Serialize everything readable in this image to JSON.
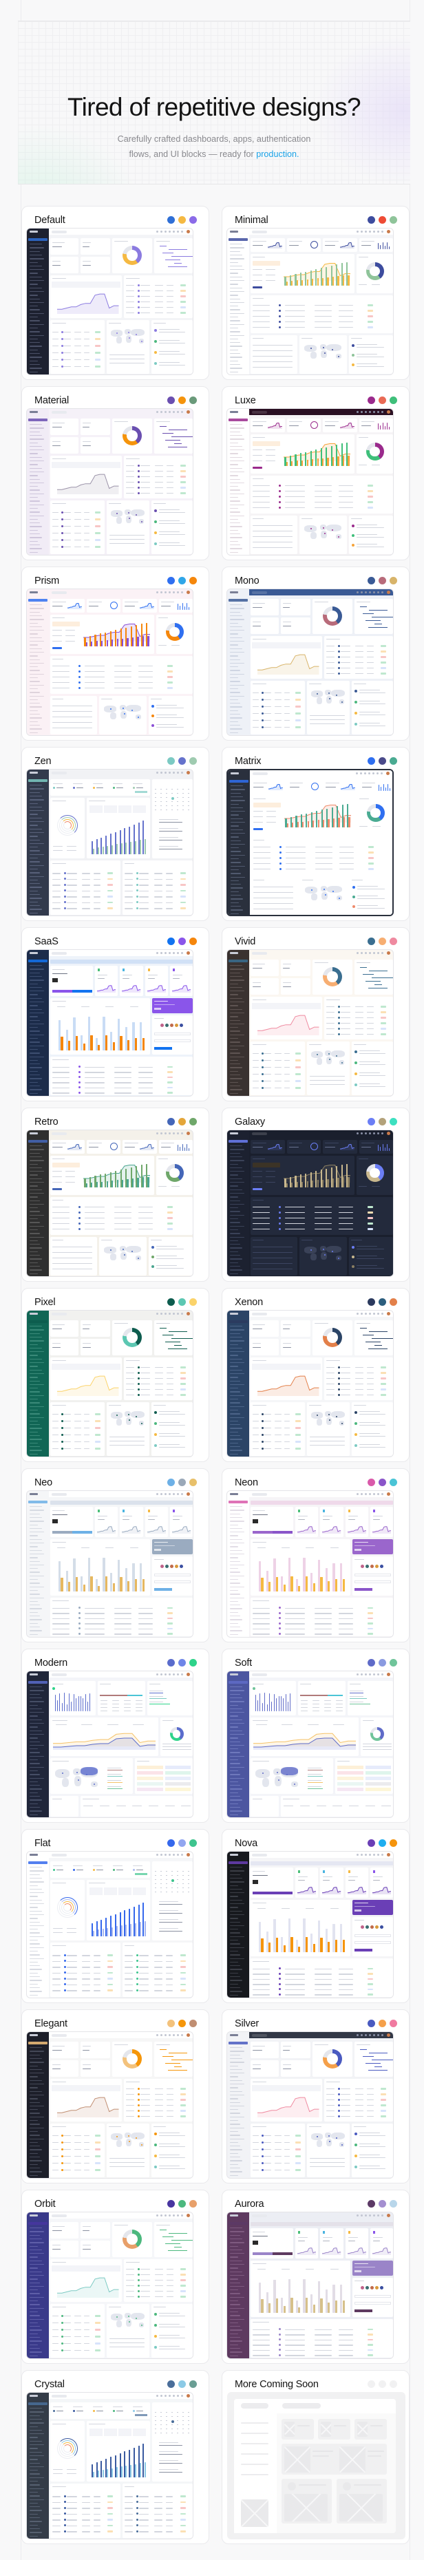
{
  "hero": {
    "title": "Tired of repetitive designs?",
    "subtitle_line1": "Carefully crafted dashboards, apps, authentication",
    "subtitle_line2_prefix": "flows, and UI blocks — ready for ",
    "subtitle_accent": "production.",
    "accent_color": "#1aa3e8"
  },
  "themes": [
    {
      "name": "Default",
      "dots": [
        "#2f6fd6",
        "#f5b942",
        "#8b6be8"
      ],
      "layout": "ecommerce",
      "sidebar": "#1d2130",
      "sidebar_text": "#4a5066",
      "bg": "#f3f4f7",
      "topbar": "#ffffff",
      "primary": "#8b7be0",
      "secondary": "#f5b942",
      "chart": "line"
    },
    {
      "name": "Minimal",
      "dots": [
        "#3d4c9e",
        "#ee4b35",
        "#8fc49a"
      ],
      "layout": "analytics",
      "sidebar": "#ffffff",
      "sidebar_text": "#d4d7df",
      "bg": "#f4f5f8",
      "topbar": "#ffffff",
      "primary": "#8fc49a",
      "secondary": "#f5b942",
      "accent": "#3d4c9e"
    },
    {
      "name": "Material",
      "dots": [
        "#6a4fb0",
        "#f5940c",
        "#6a9a7a"
      ],
      "layout": "ecommerce",
      "sidebar": "#f1ecf6",
      "sidebar_text": "#cfc6dc",
      "bg": "#f5f1f8",
      "topbar": "#f5f1f8",
      "primary": "#6a4fb0",
      "secondary": "#f5940c",
      "chart": "line-gray"
    },
    {
      "name": "Luxe",
      "dots": [
        "#9a2a8c",
        "#e96a55",
        "#3fbf7a"
      ],
      "layout": "analytics",
      "sidebar": "#ffffff",
      "sidebar_text": "#e2d9e0",
      "bg": "#f6f4f6",
      "topbar": "#2a0f22",
      "primary": "#3fbf7a",
      "secondary": "#f5a33a",
      "accent": "#9a2a8c"
    },
    {
      "name": "Prism",
      "dots": [
        "#2f6ff0",
        "#2fa6e8",
        "#f5870c"
      ],
      "layout": "analytics",
      "sidebar": "#fbf1f5",
      "sidebar_text": "#dfd3dc",
      "bg": "#fbf2f6",
      "topbar": "#fbf2f6",
      "primary": "#f5870c",
      "secondary": "#8a4fd6",
      "accent": "#2f6ff0"
    },
    {
      "name": "Mono",
      "dots": [
        "#3a5a95",
        "#b86b7a",
        "#d8b46a"
      ],
      "layout": "ecommerce",
      "sidebar": "#eef1f7",
      "sidebar_text": "#cfd5e2",
      "bg": "#eef1f7",
      "topbar": "#3a5a95",
      "primary": "#3a5a95",
      "secondary": "#b86b7a",
      "chart": "line-gold"
    },
    {
      "name": "Zen",
      "dots": [
        "#7ccac3",
        "#6572cc",
        "#9fcbb0"
      ],
      "layout": "projects",
      "sidebar": "#323a4c",
      "sidebar_text": "#58617a",
      "bg": "#f1f2f5",
      "topbar": "#f1f2f5",
      "primary": "#6572cc",
      "secondary": "#9fcbb0",
      "accent": "#7ccac3"
    },
    {
      "name": "Matrix",
      "dots": [
        "#2f6ff0",
        "#4a4a8a",
        "#4aab92"
      ],
      "layout": "analytics",
      "sidebar": "#2a303d",
      "sidebar_text": "#515a6e",
      "bg": "#ffffff",
      "topbar": "#ffffff",
      "primary": "#4aab92",
      "secondary": "#ef8a6a",
      "accent": "#2f6ff0",
      "frame": "#2a303d"
    },
    {
      "name": "SaaS",
      "dots": [
        "#1273f0",
        "#8a55ea",
        "#f5860c"
      ],
      "layout": "finance",
      "sidebar": "#1c2c4a",
      "sidebar_text": "#3d4e70",
      "bg": "#eef3fa",
      "topbar": "#ffffff",
      "primary": "#c9dcf5",
      "secondary": "#f5860c",
      "accent": "#8a55ea",
      "button": "#1273f0"
    },
    {
      "name": "Vivid",
      "dots": [
        "#3a6e90",
        "#f7ae72",
        "#ef8aa0"
      ],
      "layout": "ecommerce",
      "sidebar": "#3a3230",
      "sidebar_text": "#5e5452",
      "bg": "#fbf7f1",
      "topbar": "#fbf7f1",
      "primary": "#3a6e90",
      "secondary": "#f7ae72",
      "chart": "line-pink"
    },
    {
      "name": "Retro",
      "dots": [
        "#4466b8",
        "#e4a63a",
        "#6fa76a"
      ],
      "layout": "analytics",
      "sidebar": "#2f2f2f",
      "sidebar_text": "#575757",
      "bg": "#f4f1ea",
      "topbar": "#f4f1ea",
      "primary": "#6fa76a",
      "secondary": "#4aa590",
      "accent": "#4466b8"
    },
    {
      "name": "Galaxy",
      "dots": [
        "#6b7ef5",
        "#b3a27a",
        "#3de0c0"
      ],
      "layout": "analytics",
      "sidebar": "#1c2130",
      "sidebar_text": "#3a4258",
      "bg": "#1a1f2d",
      "topbar": "#1a1f2d",
      "primary": "#c9b88e",
      "secondary": "#8b7f62",
      "accent": "#6b7ef5",
      "dark": true
    },
    {
      "name": "Pixel",
      "dots": [
        "#0d5c4e",
        "#5cc7b2",
        "#fbd36a"
      ],
      "layout": "ecommerce",
      "sidebar": "#116655",
      "sidebar_text": "#3a8a79",
      "bg": "#f1f1ef",
      "topbar": "#f1f1ef",
      "primary": "#0d5c4e",
      "secondary": "#5cc7b2",
      "chart": "line-yellow"
    },
    {
      "name": "Xenon",
      "dots": [
        "#2b3a5e",
        "#2c5e7e",
        "#e3804a"
      ],
      "layout": "ecommerce",
      "sidebar": "#2b4466",
      "sidebar_text": "#4c6488",
      "bg": "#f5f6f8",
      "topbar": "#ffffff",
      "primary": "#2b4466",
      "secondary": "#e3804a",
      "chart": "line-orange"
    },
    {
      "name": "Neo",
      "dots": [
        "#6db0e6",
        "#9aa8b8",
        "#e8c06a"
      ],
      "layout": "finance",
      "sidebar": "#f5f6f8",
      "sidebar_text": "#d6dae2",
      "bg": "#f5f6f8",
      "topbar": "#ffffff",
      "primary": "#d4dde8",
      "secondary": "#e6b860",
      "accent": "#9aabc0",
      "button": "#6db0e6"
    },
    {
      "name": "Neon",
      "dots": [
        "#d95aaa",
        "#8a55c9",
        "#4ac4d6"
      ],
      "layout": "finance",
      "sidebar": "#ffffff",
      "sidebar_text": "#e2dde6",
      "bg": "#f6f4f7",
      "topbar": "#ffffff",
      "primary": "#eed2e6",
      "secondary": "#f5b942",
      "accent": "#9a66cc",
      "button": "#8a55c9"
    },
    {
      "name": "Modern",
      "dots": [
        "#5a6ccc",
        "#6f86e8",
        "#2ed38a"
      ],
      "layout": "crm",
      "sidebar": "#20263a",
      "sidebar_text": "#464e66",
      "bg": "#f4f5f9",
      "topbar": "#ffffff",
      "primary": "#5a6ccc",
      "secondary": "#f7d99a",
      "accent": "#2ed38a"
    },
    {
      "name": "Soft",
      "dots": [
        "#5f6bc8",
        "#8a9ae0",
        "#6fc49a"
      ],
      "layout": "crm",
      "sidebar": "#4c56a0",
      "sidebar_text": "#6e78bc",
      "bg": "#f4f5f9",
      "topbar": "#ffffff",
      "primary": "#5f6bc8",
      "secondary": "#f7d99a",
      "accent": "#6fc49a"
    },
    {
      "name": "Flat",
      "dots": [
        "#3568ec",
        "#92a6f0",
        "#3ec48e"
      ],
      "layout": "projects",
      "sidebar": "#ffffff",
      "sidebar_text": "#d8dbe2",
      "bg": "#f5f6f8",
      "topbar": "#ffffff",
      "primary": "#3568ec",
      "secondary": "#a9b8f0",
      "accent": "#3ec48e"
    },
    {
      "name": "Nova",
      "dots": [
        "#6a3fb6",
        "#1eaef0",
        "#f5940c"
      ],
      "layout": "finance",
      "sidebar": "#17191e",
      "sidebar_text": "#3b3e46",
      "bg": "#f5f5f7",
      "topbar": "#ffffff",
      "primary": "#e1e3f0",
      "secondary": "#f5940c",
      "accent": "#6a3fb6",
      "button": "#6a3fb6"
    },
    {
      "name": "Elegant",
      "dots": [
        "#f3c27c",
        "#f5960a",
        "#c08e72"
      ],
      "layout": "ecommerce",
      "sidebar": "#1d1f2a",
      "sidebar_text": "#444857",
      "bg": "#f6f6f6",
      "topbar": "#ffffff",
      "primary": "#f5960a",
      "secondary": "#f3c27c",
      "chart": "line-brown"
    },
    {
      "name": "Silver",
      "dots": [
        "#4a5ac0",
        "#f5a04a",
        "#f07aa0"
      ],
      "layout": "ecommerce",
      "sidebar": "#f2f3f6",
      "sidebar_text": "#d2d5de",
      "bg": "#f2f3f6",
      "topbar": "#323846",
      "primary": "#4a5ac0",
      "secondary": "#f5a04a",
      "chart": "line-pink"
    },
    {
      "name": "Orbit",
      "dots": [
        "#4836a0",
        "#4cb87e",
        "#e8a06a"
      ],
      "layout": "ecommerce",
      "sidebar": "#3a3a8a",
      "sidebar_text": "#5e5ea8",
      "bg": "#f5f6f9",
      "topbar": "#ffffff",
      "primary": "#4cb87e",
      "secondary": "#e8a06a",
      "chart": "line-teal"
    },
    {
      "name": "Aurora",
      "dots": [
        "#5c3a66",
        "#a48fd0",
        "#b8d6ea"
      ],
      "layout": "finance",
      "sidebar": "#5e3a60",
      "sidebar_text": "#7e5a80",
      "bg": "#eceef4",
      "topbar": "#eceef4",
      "primary": "#e2dde6",
      "secondary": "#d6c08a",
      "accent": "#9a84c8",
      "button": "#5e3a60"
    },
    {
      "name": "Crystal",
      "dots": [
        "#4a6e9a",
        "#8ccae6",
        "#6a9e94"
      ],
      "layout": "projects",
      "sidebar": "#343c48",
      "sidebar_text": "#566070",
      "bg": "#f4f6f8",
      "topbar": "#ffffff",
      "primary": "#3a5aa0",
      "secondary": "#8ccae6",
      "accent": "#4a6e9a"
    }
  ],
  "coming_soon": {
    "name": "More Coming Soon",
    "dots": [
      "#f1f1f2",
      "#f1f1f2",
      "#f1f1f2"
    ]
  }
}
